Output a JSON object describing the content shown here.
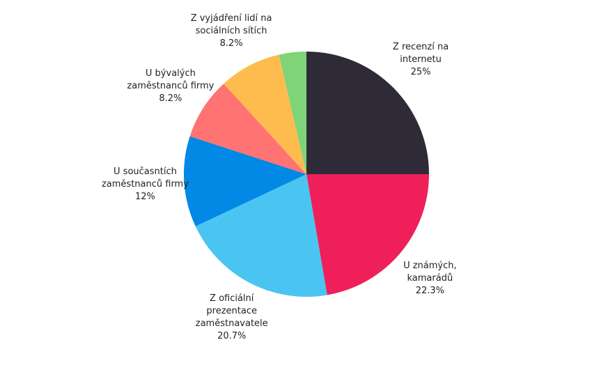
{
  "chart_data": {
    "type": "pie",
    "categories": [
      "Z recenzí na internetu",
      "U známých, kamarádů",
      "Z oficiální prezentace zaměstnavatele",
      "U současntích zaměstnanců firmy",
      "U bývalých zaměstnanců firmy",
      "Z vyjádření lidí na sociálních sítích",
      null
    ],
    "values": [
      25,
      22.3,
      20.7,
      12,
      8.2,
      8.2,
      3.6
    ],
    "value_labels": [
      "25%",
      "22.3%",
      "20.7%",
      "12%",
      "8.2%",
      "8.2%",
      null
    ],
    "colors": [
      "#2e2a38",
      "#ef1f5a",
      "#4ac5f2",
      "#0288e5",
      "#ff7373",
      "#ffbc4e",
      "#7ed477"
    ]
  }
}
